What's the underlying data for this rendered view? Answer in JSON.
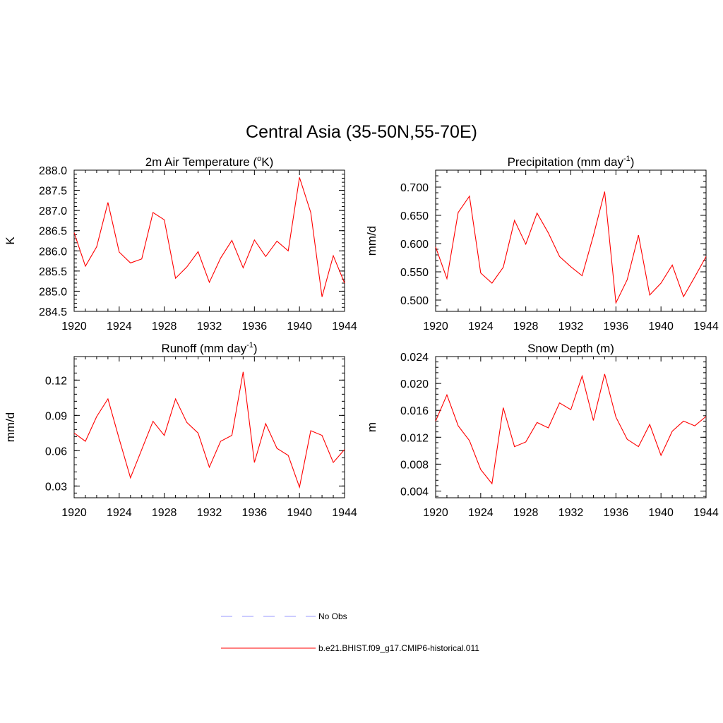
{
  "figure": {
    "title": "Central Asia (35-50N,55-70E)"
  },
  "legend": {
    "items": [
      {
        "label": "No Obs",
        "color": "#9999ff",
        "style": "dashed"
      },
      {
        "label": "b.e21.BHIST.f09_g17.CMIP6-historical.011",
        "color": "#ff0000",
        "style": "solid"
      }
    ]
  },
  "chart_data": [
    {
      "type": "line",
      "title": "2m Air Temperature (",
      "title_super": "o",
      "title_after": "K)",
      "ylabel": "K",
      "xlim": [
        1920,
        1944
      ],
      "ylim": [
        284.5,
        288.0
      ],
      "xticks": [
        1920,
        1924,
        1928,
        1932,
        1936,
        1940,
        1944
      ],
      "yticks": [
        "284.5",
        "285.0",
        "285.5",
        "286.0",
        "286.5",
        "287.0",
        "287.5",
        "288.0"
      ],
      "x": [
        1920,
        1921,
        1922,
        1923,
        1924,
        1925,
        1926,
        1927,
        1928,
        1929,
        1930,
        1931,
        1932,
        1933,
        1934,
        1935,
        1936,
        1937,
        1938,
        1939,
        1940,
        1941,
        1942,
        1943,
        1944
      ],
      "series": [
        {
          "name": "b.e21.BHIST.f09_g17.CMIP6-historical.011",
          "color": "#ff0000",
          "values": [
            286.45,
            285.62,
            286.1,
            287.2,
            285.97,
            285.7,
            285.8,
            286.95,
            286.77,
            285.32,
            285.6,
            285.98,
            285.22,
            285.82,
            286.26,
            285.58,
            286.27,
            285.86,
            286.24,
            286.0,
            287.82,
            286.95,
            284.86,
            285.88,
            285.2
          ]
        }
      ]
    },
    {
      "type": "line",
      "title": "Precipitation (mm day",
      "title_super": "-1",
      "title_after": ")",
      "ylabel": "mm/d",
      "xlim": [
        1920,
        1944
      ],
      "ylim": [
        0.48,
        0.73
      ],
      "xticks": [
        1920,
        1924,
        1928,
        1932,
        1936,
        1940,
        1944
      ],
      "yticks": [
        "0.500",
        "0.550",
        "0.600",
        "0.650",
        "0.700"
      ],
      "x": [
        1920,
        1921,
        1922,
        1923,
        1924,
        1925,
        1926,
        1927,
        1928,
        1929,
        1930,
        1931,
        1932,
        1933,
        1934,
        1935,
        1936,
        1937,
        1938,
        1939,
        1940,
        1941,
        1942,
        1943,
        1944
      ],
      "series": [
        {
          "name": "b.e21.BHIST.f09_g17.CMIP6-historical.011",
          "color": "#ff0000",
          "values": [
            0.594,
            0.538,
            0.655,
            0.684,
            0.548,
            0.53,
            0.558,
            0.641,
            0.599,
            0.654,
            0.619,
            0.577,
            0.559,
            0.543,
            0.614,
            0.692,
            0.495,
            0.536,
            0.615,
            0.509,
            0.53,
            0.562,
            0.506,
            0.541,
            0.577
          ]
        }
      ]
    },
    {
      "type": "line",
      "title": "Runoff (mm day",
      "title_super": "-1",
      "title_after": ")",
      "ylabel": "mm/d",
      "xlim": [
        1920,
        1944
      ],
      "ylim": [
        0.02,
        0.14
      ],
      "xticks": [
        1920,
        1924,
        1928,
        1932,
        1936,
        1940,
        1944
      ],
      "yticks": [
        "0.03",
        "0.06",
        "0.09",
        "0.12"
      ],
      "x": [
        1920,
        1921,
        1922,
        1923,
        1924,
        1925,
        1926,
        1927,
        1928,
        1929,
        1930,
        1931,
        1932,
        1933,
        1934,
        1935,
        1936,
        1937,
        1938,
        1939,
        1940,
        1941,
        1942,
        1943,
        1944
      ],
      "series": [
        {
          "name": "b.e21.BHIST.f09_g17.CMIP6-historical.011",
          "color": "#ff0000",
          "values": [
            0.075,
            0.068,
            0.089,
            0.104,
            0.07,
            0.037,
            0.061,
            0.085,
            0.073,
            0.104,
            0.084,
            0.075,
            0.046,
            0.068,
            0.073,
            0.127,
            0.05,
            0.083,
            0.062,
            0.056,
            0.029,
            0.077,
            0.073,
            0.05,
            0.061
          ]
        }
      ]
    },
    {
      "type": "line",
      "title": "Snow Depth (m)",
      "title_super": "",
      "title_after": "",
      "ylabel": "m",
      "xlim": [
        1920,
        1944
      ],
      "ylim": [
        0.003,
        0.024
      ],
      "xticks": [
        1920,
        1924,
        1928,
        1932,
        1936,
        1940,
        1944
      ],
      "yticks": [
        "0.004",
        "0.008",
        "0.012",
        "0.016",
        "0.020",
        "0.024"
      ],
      "x": [
        1920,
        1921,
        1922,
        1923,
        1924,
        1925,
        1926,
        1927,
        1928,
        1929,
        1930,
        1931,
        1932,
        1933,
        1934,
        1935,
        1936,
        1937,
        1938,
        1939,
        1940,
        1941,
        1942,
        1943,
        1944
      ],
      "series": [
        {
          "name": "b.e21.BHIST.f09_g17.CMIP6-historical.011",
          "color": "#ff0000",
          "values": [
            0.0144,
            0.0183,
            0.0137,
            0.0115,
            0.0072,
            0.0051,
            0.0164,
            0.0106,
            0.0113,
            0.0142,
            0.0134,
            0.0171,
            0.0161,
            0.0211,
            0.0145,
            0.0214,
            0.015,
            0.0117,
            0.0106,
            0.0139,
            0.0093,
            0.0129,
            0.0144,
            0.0137,
            0.0151
          ]
        }
      ]
    }
  ]
}
